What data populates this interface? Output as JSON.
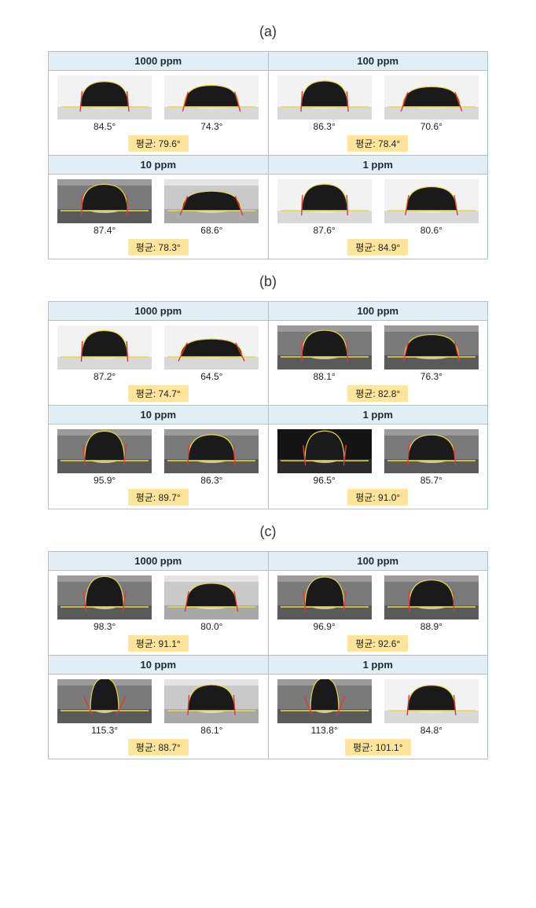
{
  "labels": {
    "avg_prefix": "평균: "
  },
  "colors": {
    "header_bg": "#e2eef5",
    "border": "#a6c4d8",
    "badge_bg": "#ffe59b",
    "text": "#222222",
    "drop_fill_dark": "#1a1a1a",
    "drop_fill_grey": "#3f3f3f",
    "baseline": "#e9d84b",
    "tangent": "#d93b3b",
    "outline": "#e9d84b",
    "surface_light": "#d8d8d8",
    "surface_dark": "#7a7a7a",
    "surface_black": "#141414",
    "highlight": "#e8e8e8"
  },
  "panels": [
    {
      "label": "(a)",
      "cells": [
        {
          "title": "1000 ppm",
          "avg": "79.6°",
          "left": {
            "angle": "84.5°",
            "bg": "light",
            "drop": "dark"
          },
          "right": {
            "angle": "74.3°",
            "bg": "light",
            "drop": "dark"
          }
        },
        {
          "title": "100 ppm",
          "avg": "78.4°",
          "left": {
            "angle": "86.3°",
            "bg": "light",
            "drop": "dark"
          },
          "right": {
            "angle": "70.6°",
            "bg": "light",
            "drop": "dark"
          }
        },
        {
          "title": "10 ppm",
          "avg": "78.3°",
          "left": {
            "angle": "87.4°",
            "bg": "darkstrip",
            "drop": "dark"
          },
          "right": {
            "angle": "68.6°",
            "bg": "lightstrip",
            "drop": "dark"
          }
        },
        {
          "title": "1 ppm",
          "avg": "84.9°",
          "left": {
            "angle": "87.6°",
            "bg": "light",
            "drop": "dark"
          },
          "right": {
            "angle": "80.6°",
            "bg": "light",
            "drop": "dark"
          }
        }
      ]
    },
    {
      "label": "(b)",
      "cells": [
        {
          "title": "1000 ppm",
          "avg": "74.7°",
          "left": {
            "angle": "87.2°",
            "bg": "light",
            "drop": "dark"
          },
          "right": {
            "angle": "64.5°",
            "bg": "light",
            "drop": "dark"
          }
        },
        {
          "title": "100 ppm",
          "avg": "82.8°",
          "left": {
            "angle": "88.1°",
            "bg": "darkstrip",
            "drop": "dark"
          },
          "right": {
            "angle": "76.3°",
            "bg": "darkstrip",
            "drop": "dark"
          }
        },
        {
          "title": "10 ppm",
          "avg": "89.7°",
          "left": {
            "angle": "95.9°",
            "bg": "darkstrip",
            "drop": "dark"
          },
          "right": {
            "angle": "86.3°",
            "bg": "darkstrip",
            "drop": "dark"
          }
        },
        {
          "title": "1 ppm",
          "avg": "91.0°",
          "left": {
            "angle": "96.5°",
            "bg": "blackstrip",
            "drop": "dark"
          },
          "right": {
            "angle": "85.7°",
            "bg": "darkstrip",
            "drop": "dark"
          }
        }
      ]
    },
    {
      "label": "(c)",
      "cells": [
        {
          "title": "1000 ppm",
          "avg": "91.1°",
          "left": {
            "angle": "98.3°",
            "bg": "darkstrip",
            "drop": "dark"
          },
          "right": {
            "angle": "80.0°",
            "bg": "lightstrip",
            "drop": "dark"
          }
        },
        {
          "title": "100 ppm",
          "avg": "92.6°",
          "left": {
            "angle": "96.9°",
            "bg": "darkstrip",
            "drop": "dark"
          },
          "right": {
            "angle": "88.9°",
            "bg": "darkstrip",
            "drop": "dark"
          }
        },
        {
          "title": "10 ppm",
          "avg": "88.7°",
          "left": {
            "angle": "115.3°",
            "bg": "darkstrip",
            "drop": "dark"
          },
          "right": {
            "angle": "86.1°",
            "bg": "lightstrip",
            "drop": "dark"
          }
        },
        {
          "title": "1 ppm",
          "avg": "101.1°",
          "left": {
            "angle": "113.8°",
            "bg": "darkstrip",
            "drop": "dark"
          },
          "right": {
            "angle": "84.8°",
            "bg": "light",
            "drop": "dark"
          }
        }
      ]
    }
  ]
}
